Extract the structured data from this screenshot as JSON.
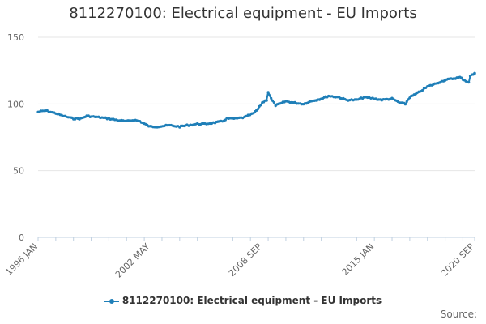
{
  "chart_data": {
    "type": "line",
    "title": "8112270100: Electrical equipment - EU Imports",
    "xlabel": "",
    "ylabel": "",
    "x_range": [
      "1996-01",
      "2020-09"
    ],
    "x_tick_labels": [
      "1996 JAN",
      "2002 MAY",
      "2008 SEP",
      "2015 JAN",
      "2020 SEP"
    ],
    "ylim": [
      0,
      150
    ],
    "y_ticks": [
      0,
      50,
      100,
      150
    ],
    "grid": true,
    "legend_position": "bottom",
    "series": [
      {
        "name": "8112270100: Electrical equipment - EU Imports",
        "color": "#1f7fb8",
        "points": [
          [
            "1996-01",
            94
          ],
          [
            "1996-06",
            95
          ],
          [
            "1997-01",
            93
          ],
          [
            "1997-06",
            91
          ],
          [
            "1998-01",
            89
          ],
          [
            "1998-06",
            89
          ],
          [
            "1998-10",
            91
          ],
          [
            "1999-06",
            90
          ],
          [
            "2000-01",
            89
          ],
          [
            "2000-06",
            88
          ],
          [
            "2001-01",
            87
          ],
          [
            "2001-06",
            88
          ],
          [
            "2001-10",
            87
          ],
          [
            "2002-03",
            84
          ],
          [
            "2002-05",
            83
          ],
          [
            "2002-10",
            83
          ],
          [
            "2003-06",
            84
          ],
          [
            "2004-01",
            83
          ],
          [
            "2004-06",
            84
          ],
          [
            "2005-01",
            85
          ],
          [
            "2005-06",
            85
          ],
          [
            "2006-01",
            86
          ],
          [
            "2006-06",
            87
          ],
          [
            "2006-09",
            89
          ],
          [
            "2007-03",
            89
          ],
          [
            "2007-09",
            90
          ],
          [
            "2008-03",
            93
          ],
          [
            "2008-06",
            96
          ],
          [
            "2008-09",
            101
          ],
          [
            "2008-12",
            103
          ],
          [
            "2009-01",
            109
          ],
          [
            "2009-03",
            104
          ],
          [
            "2009-06",
            99
          ],
          [
            "2009-09",
            100
          ],
          [
            "2010-01",
            102
          ],
          [
            "2010-06",
            101
          ],
          [
            "2011-01",
            100
          ],
          [
            "2011-06",
            102
          ],
          [
            "2012-01",
            104
          ],
          [
            "2012-06",
            106
          ],
          [
            "2013-01",
            105
          ],
          [
            "2013-06",
            103
          ],
          [
            "2014-01",
            103
          ],
          [
            "2014-06",
            105
          ],
          [
            "2015-01",
            104
          ],
          [
            "2015-06",
            103
          ],
          [
            "2016-01",
            104
          ],
          [
            "2016-06",
            101
          ],
          [
            "2016-10",
            100
          ],
          [
            "2017-01",
            105
          ],
          [
            "2017-06",
            108
          ],
          [
            "2018-01",
            113
          ],
          [
            "2018-06",
            115
          ],
          [
            "2019-01",
            118
          ],
          [
            "2019-06",
            119
          ],
          [
            "2019-11",
            120
          ],
          [
            "2020-02",
            118
          ],
          [
            "2020-05",
            116
          ],
          [
            "2020-06",
            121
          ],
          [
            "2020-09",
            123
          ]
        ]
      }
    ]
  },
  "source_label": "Source:"
}
